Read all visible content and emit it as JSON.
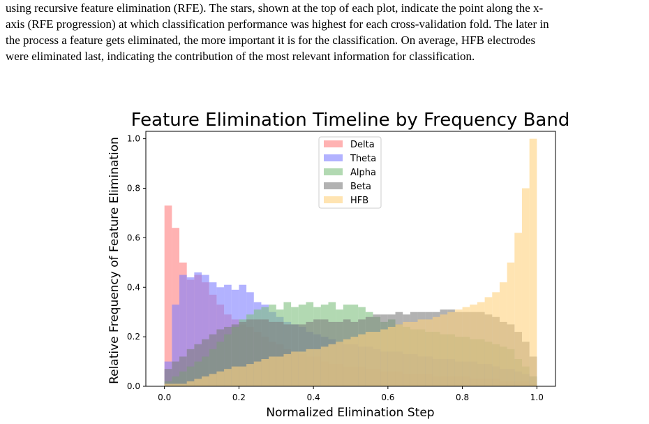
{
  "caption": {
    "lines": [
      "using recursive feature elimination (RFE). The stars, shown at the top of each plot, indicate the point along the x-",
      "axis (RFE progression) at which classification performance was highest for each cross-validation fold. The later in",
      "the process a feature gets eliminated, the more important it is for the classification. On average, HFB electrodes",
      "were eliminated last, indicating the contribution of the most relevant information for classification."
    ]
  },
  "chart_data": {
    "type": "histogram",
    "title": "Feature Elimination Timeline by Frequency Band",
    "xlabel": "Normalized Elimination Step",
    "ylabel": "Relative Frequency of Feature Elimination",
    "xlim": [
      -0.05,
      1.05
    ],
    "ylim": [
      0,
      1.03
    ],
    "xticks": [
      "0.0",
      "0.2",
      "0.4",
      "0.6",
      "0.8",
      "1.0"
    ],
    "yticks": [
      "0.0",
      "0.2",
      "0.4",
      "0.6",
      "0.8",
      "1.0"
    ],
    "grid": false,
    "legend": "top-center",
    "bins": 50,
    "bin_range": [
      0,
      1
    ],
    "series": [
      {
        "name": "Delta",
        "color": "#ff7f7f",
        "values": [
          0.73,
          0.64,
          0.5,
          0.43,
          0.45,
          0.42,
          0.37,
          0.33,
          0.29,
          0.27,
          0.25,
          0.24,
          0.22,
          0.2,
          0.18,
          0.17,
          0.15,
          0.14,
          0.13,
          0.12,
          0.12,
          0.1,
          0.09,
          0.09,
          0.08,
          0.08,
          0.08,
          0.07,
          0.07,
          0.06,
          0.06,
          0.06,
          0.05,
          0.05,
          0.05,
          0.05,
          0.04,
          0.04,
          0.04,
          0.04,
          0.04,
          0.03,
          0.03,
          0.03,
          0.03,
          0.02,
          0.02,
          0.02,
          0.02,
          0.01
        ]
      },
      {
        "name": "Theta",
        "color": "#7f7fff",
        "values": [
          0.1,
          0.33,
          0.45,
          0.44,
          0.46,
          0.45,
          0.42,
          0.4,
          0.41,
          0.39,
          0.41,
          0.38,
          0.34,
          0.33,
          0.3,
          0.28,
          0.26,
          0.25,
          0.24,
          0.22,
          0.21,
          0.2,
          0.19,
          0.18,
          0.17,
          0.17,
          0.16,
          0.16,
          0.15,
          0.14,
          0.14,
          0.14,
          0.13,
          0.13,
          0.12,
          0.12,
          0.11,
          0.11,
          0.11,
          0.1,
          0.1,
          0.1,
          0.09,
          0.09,
          0.08,
          0.07,
          0.07,
          0.06,
          0.05,
          0.04
        ]
      },
      {
        "name": "Alpha",
        "color": "#7fbf7f",
        "values": [
          0.02,
          0.04,
          0.06,
          0.08,
          0.1,
          0.12,
          0.15,
          0.18,
          0.21,
          0.24,
          0.27,
          0.29,
          0.31,
          0.32,
          0.33,
          0.31,
          0.34,
          0.32,
          0.33,
          0.34,
          0.32,
          0.33,
          0.34,
          0.31,
          0.33,
          0.33,
          0.32,
          0.3,
          0.28,
          0.26,
          0.27,
          0.25,
          0.24,
          0.23,
          0.23,
          0.22,
          0.22,
          0.21,
          0.21,
          0.2,
          0.2,
          0.19,
          0.19,
          0.18,
          0.17,
          0.16,
          0.15,
          0.11,
          0.08,
          0.04
        ]
      },
      {
        "name": "Beta",
        "color": "#7f7f7f",
        "values": [
          0.07,
          0.1,
          0.12,
          0.15,
          0.17,
          0.19,
          0.21,
          0.23,
          0.24,
          0.25,
          0.26,
          0.27,
          0.27,
          0.27,
          0.26,
          0.26,
          0.25,
          0.25,
          0.25,
          0.26,
          0.27,
          0.27,
          0.26,
          0.26,
          0.27,
          0.26,
          0.27,
          0.28,
          0.29,
          0.29,
          0.29,
          0.3,
          0.29,
          0.3,
          0.3,
          0.3,
          0.3,
          0.31,
          0.31,
          0.3,
          0.3,
          0.3,
          0.3,
          0.29,
          0.28,
          0.26,
          0.25,
          0.22,
          0.18,
          0.12
        ]
      },
      {
        "name": "HFB",
        "color": "#ffd27f",
        "values": [
          0.01,
          0.01,
          0.01,
          0.02,
          0.03,
          0.04,
          0.05,
          0.06,
          0.07,
          0.08,
          0.08,
          0.09,
          0.1,
          0.11,
          0.12,
          0.12,
          0.13,
          0.14,
          0.14,
          0.15,
          0.15,
          0.16,
          0.17,
          0.18,
          0.19,
          0.2,
          0.21,
          0.22,
          0.22,
          0.23,
          0.24,
          0.25,
          0.26,
          0.26,
          0.27,
          0.27,
          0.28,
          0.29,
          0.3,
          0.31,
          0.32,
          0.33,
          0.34,
          0.36,
          0.38,
          0.42,
          0.5,
          0.62,
          0.8,
          1.0
        ]
      }
    ]
  }
}
